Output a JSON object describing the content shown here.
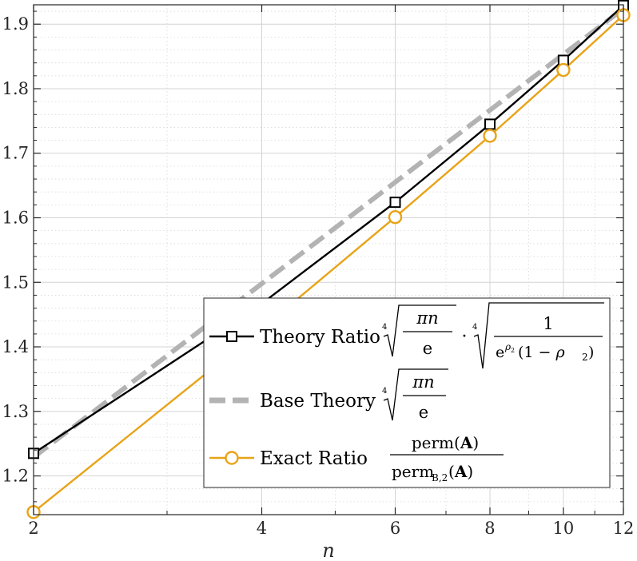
{
  "chart_data": {
    "type": "line",
    "xscale": "log",
    "xlim": [
      2,
      12
    ],
    "ylim": [
      1.14,
      1.93
    ],
    "xlabel": "n",
    "ylabel": "",
    "xticks": [
      2,
      4,
      6,
      8,
      10,
      12
    ],
    "xtick_labels": [
      "2",
      "4",
      "6",
      "8",
      "10",
      "12"
    ],
    "yticks": [
      1.2,
      1.3,
      1.4,
      1.5,
      1.6,
      1.7,
      1.8,
      1.9
    ],
    "ytick_labels": [
      "1.2",
      "1.3",
      "1.4",
      "1.5",
      "1.6",
      "1.7",
      "1.8",
      "1.9"
    ],
    "grid": true,
    "minor_grid": true,
    "legend_position": "bottom-right",
    "series": [
      {
        "name": "Theory Ratio",
        "formula": "⁴√(πn/e) · ⁴√(1/(e^ρ₂(1−ρ₂)))",
        "color": "#000000",
        "marker": "square",
        "x": [
          2,
          4,
          6,
          8,
          10,
          12
        ],
        "y": [
          1.235,
          1.467,
          1.624,
          1.745,
          1.844,
          1.929
        ]
      },
      {
        "name": "Base Theory",
        "formula": "⁴√(πn/e)",
        "color": "#b3b3b3",
        "marker": "none",
        "dashed": true,
        "x": [
          2,
          12
        ],
        "y": [
          1.229,
          1.924
        ]
      },
      {
        "name": "Exact Ratio",
        "formula": "perm(A) / perm_B,2(A)",
        "color": "#e8a317",
        "marker": "circle",
        "x": [
          2,
          4,
          6,
          8,
          10,
          12
        ],
        "y": [
          1.144,
          1.428,
          1.601,
          1.727,
          1.829,
          1.914
        ]
      }
    ]
  }
}
